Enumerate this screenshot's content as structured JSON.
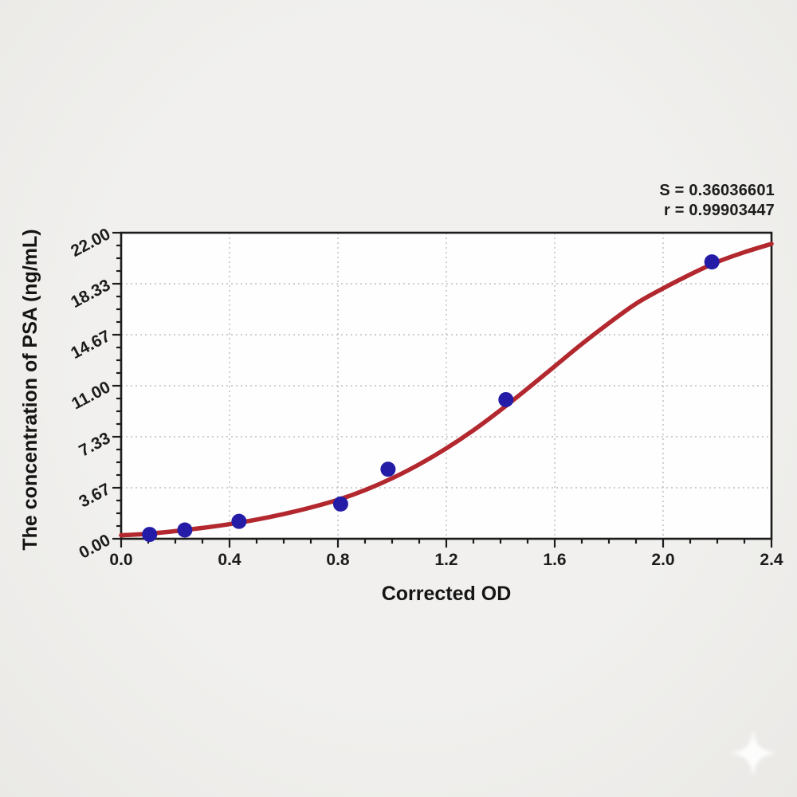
{
  "annotation": {
    "s_label": "S = 0.36036601",
    "r_label": "r = 0.99903447"
  },
  "chart_data": {
    "type": "scatter",
    "title": "",
    "xlabel": "Corrected OD",
    "ylabel": "The concentration of PSA (ng/mL)",
    "xlim": [
      0.0,
      2.4
    ],
    "ylim": [
      0.0,
      22.0
    ],
    "grid": "dotted-major-both-axes",
    "legend": "none",
    "x_ticks": [
      "0.0",
      "0.4",
      "0.8",
      "1.2",
      "1.6",
      "2.0",
      "2.4"
    ],
    "x_tick_values": [
      0.0,
      0.4,
      0.8,
      1.2,
      1.6,
      2.0,
      2.4
    ],
    "y_ticks": [
      "0.00",
      "3.67",
      "7.33",
      "11.00",
      "14.67",
      "18.33",
      "22.00"
    ],
    "y_tick_values": [
      0.0,
      3.667,
      7.333,
      11.0,
      14.667,
      18.333,
      22.0
    ],
    "minor_ticks_per_interval": 3,
    "series": [
      {
        "name": "standard-points",
        "type": "scatter",
        "points": [
          {
            "x": 0.105,
            "y": 0.31
          },
          {
            "x": 0.235,
            "y": 0.63
          },
          {
            "x": 0.435,
            "y": 1.25
          },
          {
            "x": 0.81,
            "y": 2.5
          },
          {
            "x": 0.985,
            "y": 5.0
          },
          {
            "x": 1.42,
            "y": 10.0
          },
          {
            "x": 2.18,
            "y": 19.9
          }
        ]
      },
      {
        "name": "4pl-fit-curve",
        "type": "line",
        "points": [
          {
            "x": 0.0,
            "y": 0.25
          },
          {
            "x": 0.1,
            "y": 0.36
          },
          {
            "x": 0.2,
            "y": 0.55
          },
          {
            "x": 0.3,
            "y": 0.78
          },
          {
            "x": 0.4,
            "y": 1.05
          },
          {
            "x": 0.5,
            "y": 1.38
          },
          {
            "x": 0.6,
            "y": 1.78
          },
          {
            "x": 0.7,
            "y": 2.25
          },
          {
            "x": 0.8,
            "y": 2.8
          },
          {
            "x": 0.9,
            "y": 3.5
          },
          {
            "x": 1.0,
            "y": 4.35
          },
          {
            "x": 1.1,
            "y": 5.35
          },
          {
            "x": 1.2,
            "y": 6.5
          },
          {
            "x": 1.3,
            "y": 7.8
          },
          {
            "x": 1.4,
            "y": 9.25
          },
          {
            "x": 1.5,
            "y": 10.8
          },
          {
            "x": 1.6,
            "y": 12.4
          },
          {
            "x": 1.7,
            "y": 14.0
          },
          {
            "x": 1.8,
            "y": 15.5
          },
          {
            "x": 1.9,
            "y": 16.9
          },
          {
            "x": 2.0,
            "y": 18.0
          },
          {
            "x": 2.1,
            "y": 19.0
          },
          {
            "x": 2.2,
            "y": 19.9
          },
          {
            "x": 2.3,
            "y": 20.6
          },
          {
            "x": 2.4,
            "y": 21.2
          }
        ]
      }
    ]
  },
  "colors": {
    "curve": "#b2282e",
    "point": "#241ca6",
    "frame": "#1c1c1c",
    "grid": "#bdbdbd",
    "plot_background": "#fefefe",
    "page_background": "#f0efed",
    "text": "#1c1c1c"
  },
  "watermark": {
    "name": "sparkle-star",
    "color": "#ffffff"
  }
}
